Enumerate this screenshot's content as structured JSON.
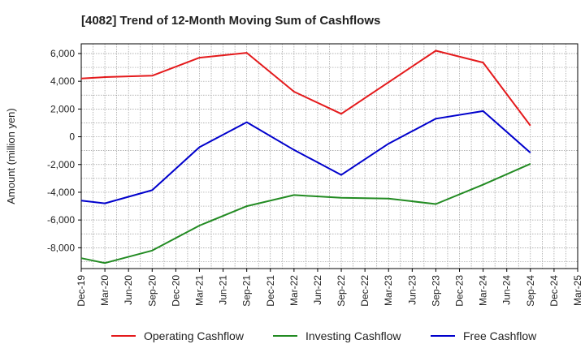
{
  "chart_data": {
    "type": "line",
    "title": "[4082]  Trend of 12-Month Moving Sum of Cashflows",
    "xlabel": "",
    "ylabel": "Amount (million yen)",
    "categories": [
      "Dec-19",
      "Mar-20",
      "Jun-20",
      "Sep-20",
      "Dec-20",
      "Mar-21",
      "Jun-21",
      "Sep-21",
      "Dec-21",
      "Mar-22",
      "Jun-22",
      "Sep-22",
      "Dec-22",
      "Mar-23",
      "Jun-23",
      "Sep-23",
      "Dec-23",
      "Mar-24",
      "Jun-24",
      "Sep-24",
      "Dec-24",
      "Mar-25"
    ],
    "ylim": [
      -9500,
      6700
    ],
    "yticks": [
      6000,
      4000,
      2000,
      0,
      -2000,
      -4000,
      -6000,
      -8000
    ],
    "ytick_labels": [
      "6,000",
      "4,000",
      "2,000",
      "0",
      "-2,000",
      "-4,000",
      "-6,000",
      "-8,000"
    ],
    "grid": true,
    "legend_position": "bottom",
    "series": [
      {
        "name": "Operating Cashflow",
        "color": "#e41a1c",
        "points": [
          [
            0,
            4200
          ],
          [
            1,
            4300
          ],
          [
            3,
            4400
          ],
          [
            5,
            5700
          ],
          [
            7,
            6050
          ],
          [
            9,
            3250
          ],
          [
            11,
            1650
          ],
          [
            15,
            6200
          ],
          [
            17,
            5350
          ],
          [
            19,
            800
          ]
        ]
      },
      {
        "name": "Investing Cashflow",
        "color": "#228b22",
        "points": [
          [
            0,
            -8750
          ],
          [
            1,
            -9100
          ],
          [
            3,
            -8200
          ],
          [
            5,
            -6400
          ],
          [
            7,
            -5000
          ],
          [
            9,
            -4200
          ],
          [
            11,
            -4400
          ],
          [
            13,
            -4450
          ],
          [
            15,
            -4850
          ],
          [
            17,
            -3450
          ],
          [
            19,
            -1950
          ]
        ]
      },
      {
        "name": "Free Cashflow",
        "color": "#0000cc",
        "points": [
          [
            0,
            -4600
          ],
          [
            1,
            -4800
          ],
          [
            3,
            -3850
          ],
          [
            5,
            -750
          ],
          [
            7,
            1050
          ],
          [
            9,
            -950
          ],
          [
            11,
            -2750
          ],
          [
            13,
            -500
          ],
          [
            15,
            1300
          ],
          [
            17,
            1850
          ],
          [
            19,
            -1150
          ]
        ]
      }
    ]
  }
}
